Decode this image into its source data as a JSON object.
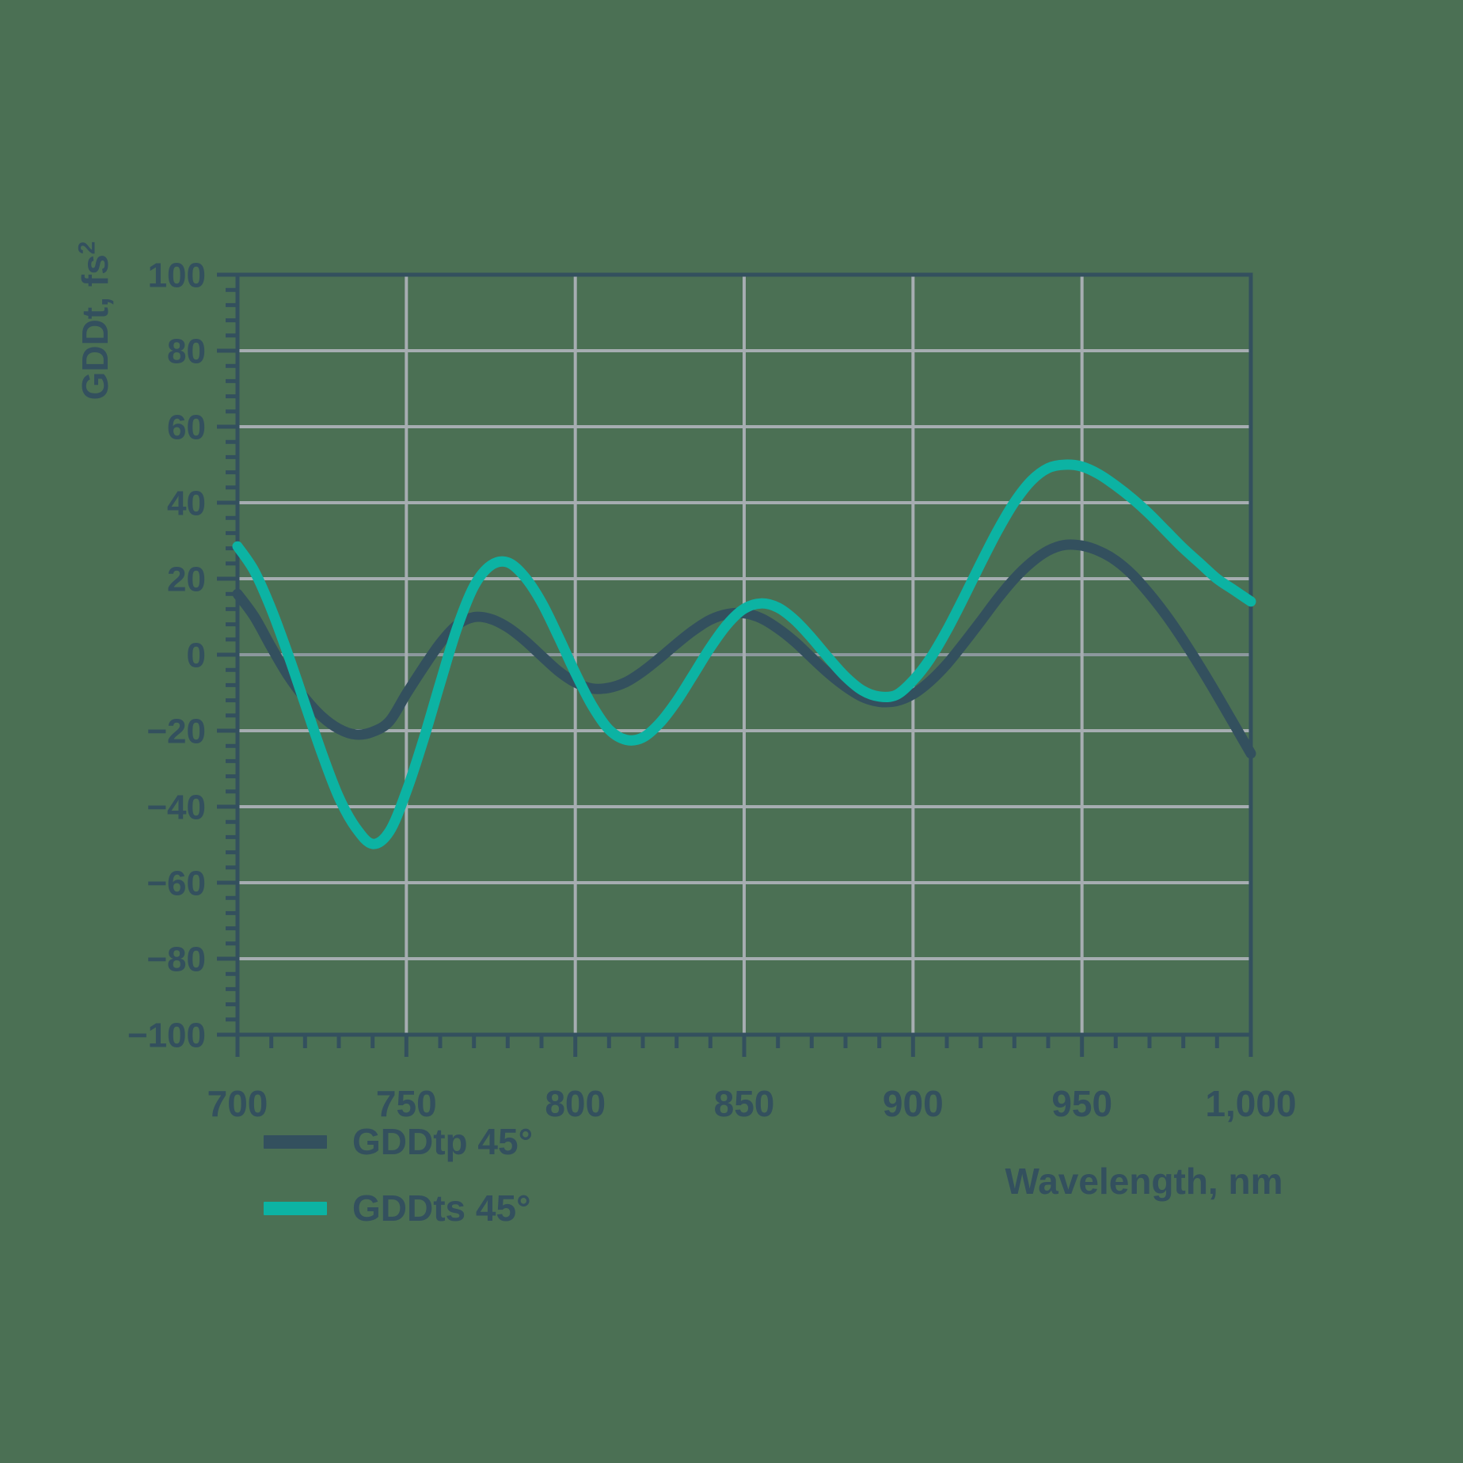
{
  "colors": {
    "background": "#4B7054",
    "text": "#33505E",
    "axis": "#33505E",
    "grid": "#A6ADB1",
    "zero_line": "#8C989D",
    "series_gddtp": "#33505E",
    "series_gddts": "#0CB3A3"
  },
  "legend": {
    "items": [
      {
        "label": "GDDtp 45°",
        "color": "#33505E"
      },
      {
        "label": "GDDts 45°",
        "color": "#0CB3A3"
      }
    ]
  },
  "chart_data": {
    "type": "line",
    "xlabel": "Wavelength, nm",
    "ylabel": "GDDt, fs²",
    "ylabel_base": "GDDt, fs",
    "ylabel_sup": "2",
    "xlim": [
      700,
      1000
    ],
    "ylim": [
      -100,
      100
    ],
    "x_major_step": 50,
    "x_minor_step": 10,
    "y_major_step": 20,
    "y_minor_step": 4,
    "grid": true,
    "legend_position": "bottom-left",
    "x_tick_labels": [
      "700",
      "750",
      "800",
      "850",
      "900",
      "950",
      "1,000"
    ],
    "y_tick_labels": [
      "−100",
      "−80",
      "−60",
      "−40",
      "−20",
      "0",
      "20",
      "40",
      "60",
      "80",
      "100"
    ],
    "x": [
      700,
      705,
      710,
      715,
      720,
      725,
      730,
      735,
      740,
      745,
      750,
      755,
      760,
      765,
      770,
      775,
      780,
      785,
      790,
      795,
      800,
      805,
      810,
      815,
      820,
      825,
      830,
      835,
      840,
      845,
      850,
      855,
      860,
      865,
      870,
      875,
      880,
      885,
      890,
      895,
      900,
      905,
      910,
      915,
      920,
      925,
      930,
      935,
      940,
      945,
      950,
      955,
      960,
      965,
      970,
      975,
      980,
      985,
      990,
      995,
      1000
    ],
    "series": [
      {
        "name": "GDDtp 45°",
        "color": "#33505E",
        "values": [
          16,
          10,
          2,
          -5.5,
          -11.5,
          -16.3,
          -19.5,
          -21,
          -20.3,
          -17.5,
          -10.3,
          -3.4,
          3,
          7.8,
          9.9,
          9.4,
          7.2,
          3.8,
          -0.3,
          -4.3,
          -7.3,
          -8.9,
          -8.7,
          -7.2,
          -4.4,
          -0.9,
          2.9,
          6.4,
          9.2,
          10.7,
          10.9,
          9.6,
          6.9,
          3.4,
          -0.8,
          -4.9,
          -8.4,
          -11.1,
          -12.4,
          -12.2,
          -10.4,
          -7,
          -2.5,
          3,
          8.8,
          14.7,
          20,
          24.3,
          27.4,
          28.9,
          28.7,
          27.3,
          24.8,
          21,
          16,
          10.3,
          3.8,
          -3.2,
          -10.6,
          -18.3,
          -26
        ]
      },
      {
        "name": "GDDts 45°",
        "color": "#0CB3A3",
        "values": [
          28.5,
          22,
          12,
          0,
          -13,
          -26,
          -37.5,
          -45.5,
          -49.8,
          -46.5,
          -36,
          -22.5,
          -7.5,
          7,
          18,
          23.5,
          24.3,
          20.5,
          13.8,
          4.8,
          -4.8,
          -13.4,
          -19.7,
          -22.4,
          -21.8,
          -18,
          -12.2,
          -5.2,
          1.9,
          8,
          12.1,
          13.5,
          12.4,
          9.1,
          4.4,
          -0.9,
          -5.8,
          -9.4,
          -11,
          -10.6,
          -6.8,
          -1.1,
          6.4,
          15,
          24,
          32.6,
          40.1,
          45.8,
          49.1,
          50,
          49.5,
          47.5,
          44.5,
          41,
          37,
          32.5,
          28,
          24,
          20,
          17,
          14
        ]
      }
    ]
  }
}
